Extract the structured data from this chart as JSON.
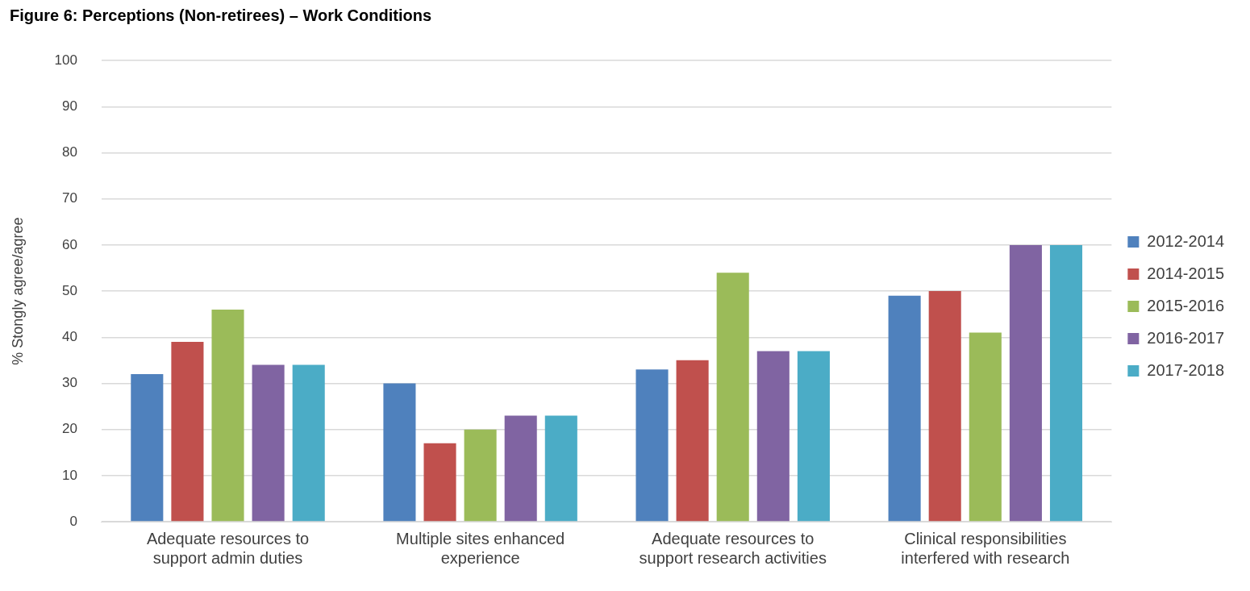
{
  "chart_data": {
    "type": "bar",
    "title": "Figure 6: Perceptions (Non-retirees) – Work Conditions",
    "ylabel": "% Stongly agree/agree",
    "categories": [
      "Adequate resources to support admin duties",
      "Multiple sites enhanced experience",
      "Adequate resources to support research activities",
      "Clinical responsibilities interfered with research"
    ],
    "series": [
      {
        "name": "2012-2014",
        "color": "#4f81bd",
        "values": [
          32,
          30,
          33,
          49
        ]
      },
      {
        "name": "2014-2015",
        "color": "#c0504d",
        "values": [
          39,
          17,
          35,
          50
        ]
      },
      {
        "name": "2015-2016",
        "color": "#9bbb59",
        "values": [
          46,
          20,
          54,
          41
        ]
      },
      {
        "name": "2016-2017",
        "color": "#8064a2",
        "values": [
          34,
          23,
          37,
          60
        ]
      },
      {
        "name": "2017-2018",
        "color": "#4bacc6",
        "values": [
          34,
          23,
          37,
          60
        ]
      }
    ],
    "ylim": [
      0,
      100
    ],
    "yticks": [
      0,
      10,
      20,
      30,
      40,
      50,
      60,
      70,
      80,
      90,
      100
    ],
    "grid": "y",
    "legend": "right"
  }
}
